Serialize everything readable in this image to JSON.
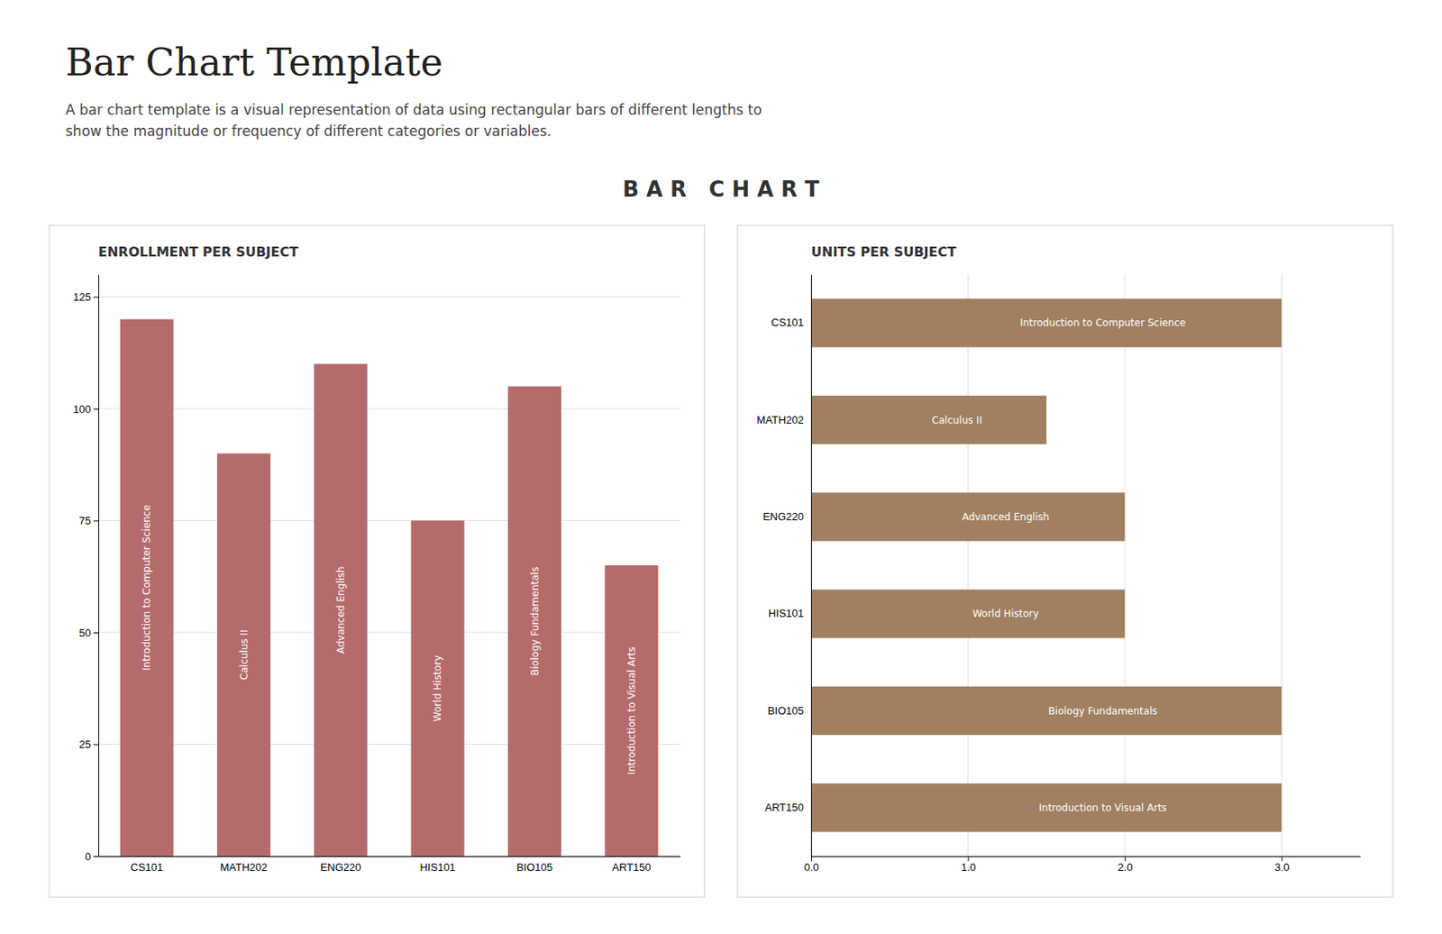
{
  "title": "Bar Chart Template",
  "subtitle": "A bar chart template is a visual representation of data using rectangular bars of different lengths to\nshow the magnitude or frequency of different categories or variables.",
  "annotations": [
    "B A R   C H A R T"
  ],
  "chart_data": [
    {
      "type": "bar",
      "title": "ENROLLMENT PER SUBJECT",
      "categories": [
        "CS101",
        "MATH202",
        "ENG220",
        "HIS101",
        "BIO105",
        "ART150"
      ],
      "values": [
        120,
        90,
        110,
        75,
        105,
        65
      ],
      "annotations": [
        "Introduction to Computer Science",
        "Calculus II",
        "Advanced English",
        "World History",
        "Biology Fundamentals",
        "Introduction to Visual Arts"
      ],
      "color": "#b56b6b",
      "ylim": [
        0,
        130
      ],
      "yticks": [
        0,
        25,
        50,
        75,
        100,
        125
      ],
      "grid": true
    },
    {
      "type": "bar",
      "orientation": "horizontal",
      "title": "UNITS PER SUBJECT",
      "categories": [
        "CS101",
        "MATH202",
        "ENG220",
        "HIS101",
        "BIO105",
        "ART150"
      ],
      "values": [
        3.0,
        1.5,
        2.0,
        2.0,
        3.0,
        3.0
      ],
      "annotations": [
        "Introduction to Computer Science",
        "Calculus II",
        "Advanced English",
        "World History",
        "Biology Fundamentals",
        "Introduction to Visual Arts"
      ],
      "color": "#a08060",
      "xlim": [
        0,
        3.5
      ],
      "xticks": [
        {
          "value": 0.0,
          "label": "0.0"
        },
        {
          "value": 1.0,
          "label": "1.0"
        },
        {
          "value": 2.0,
          "label": "2.0"
        },
        {
          "value": 3.0,
          "label": "3.0"
        }
      ],
      "grid": true
    }
  ]
}
